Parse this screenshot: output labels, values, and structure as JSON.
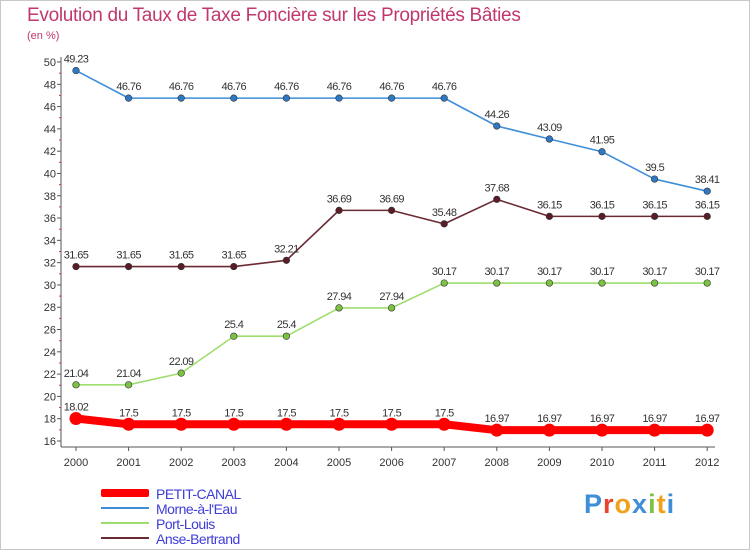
{
  "title": "Evolution du Taux de Taxe Foncière sur les Propriétés Bâties",
  "unit_label": "(en %)",
  "logo": {
    "letters": [
      {
        "ch": "P",
        "color": "#3f8fd8"
      },
      {
        "ch": "r",
        "color": "#e8452c"
      },
      {
        "ch": "o",
        "color": "#f0a21c"
      },
      {
        "ch": "x",
        "color": "#3f8fd8"
      },
      {
        "ch": "i",
        "color": "#7cc242"
      },
      {
        "ch": "t",
        "color": "#f0a21c"
      },
      {
        "ch": "i",
        "color": "#3f8fd8"
      }
    ]
  },
  "chart_data": {
    "type": "line",
    "title": "Evolution du Taux de Taxe Foncière sur les Propriétés Bâties",
    "ylabel": "(en %)",
    "xlabel": "",
    "x": [
      "2000",
      "2001",
      "2002",
      "2003",
      "2004",
      "2005",
      "2006",
      "2007",
      "2008",
      "2009",
      "2010",
      "2011",
      "2012"
    ],
    "ylim": [
      16,
      50
    ],
    "yticks": [
      16,
      18,
      20,
      22,
      24,
      26,
      28,
      30,
      32,
      34,
      36,
      38,
      40,
      42,
      44,
      46,
      48,
      50
    ],
    "grid": false,
    "legend_position": "bottom-left",
    "series": [
      {
        "name": "PETIT-CANAL",
        "color": "#ff0000",
        "emphasis": true,
        "values": [
          18.02,
          17.5,
          17.5,
          17.5,
          17.5,
          17.5,
          17.5,
          17.5,
          16.97,
          16.97,
          16.97,
          16.97,
          16.97
        ],
        "labels": [
          "18.02",
          "17.5",
          "17.5",
          "17.5",
          "17.5",
          "17.5",
          "17.5",
          "17.5",
          "16.97",
          "16.97",
          "16.97",
          "16.97",
          "16.97"
        ]
      },
      {
        "name": "Morne-à-l'Eau",
        "color": "#3f8fd8",
        "point_color": "#2f78c4",
        "values": [
          49.23,
          46.76,
          46.76,
          46.76,
          46.76,
          46.76,
          46.76,
          46.76,
          44.26,
          43.09,
          41.95,
          39.5,
          38.41
        ],
        "labels": [
          "49.23",
          "46.76",
          "46.76",
          "46.76",
          "46.76",
          "46.76",
          "46.76",
          "46.76",
          "44.26",
          "43.09",
          "41.95",
          "39.5",
          "38.41"
        ]
      },
      {
        "name": "Port-Louis",
        "color": "#9ede6e",
        "point_color": "#7cc242",
        "values": [
          21.04,
          21.04,
          22.09,
          25.4,
          25.4,
          27.94,
          27.94,
          30.17,
          30.17,
          30.17,
          30.17,
          30.17,
          30.17
        ],
        "labels": [
          "21.04",
          "21.04",
          "22.09",
          "25.4",
          "25.4",
          "27.94",
          "27.94",
          "30.17",
          "30.17",
          "30.17",
          "30.17",
          "30.17",
          "30.17"
        ]
      },
      {
        "name": "Anse-Bertrand",
        "color": "#6a2a32",
        "point_color": "#5a1c26",
        "values": [
          31.65,
          31.65,
          31.65,
          31.65,
          32.21,
          36.69,
          36.69,
          35.48,
          37.68,
          36.15,
          36.15,
          36.15,
          36.15
        ],
        "labels": [
          "31.65",
          "31.65",
          "31.65",
          "31.65",
          "32.21",
          "36.69",
          "36.69",
          "35.48",
          "37.68",
          "36.15",
          "36.15",
          "36.15",
          "36.15"
        ]
      }
    ]
  }
}
